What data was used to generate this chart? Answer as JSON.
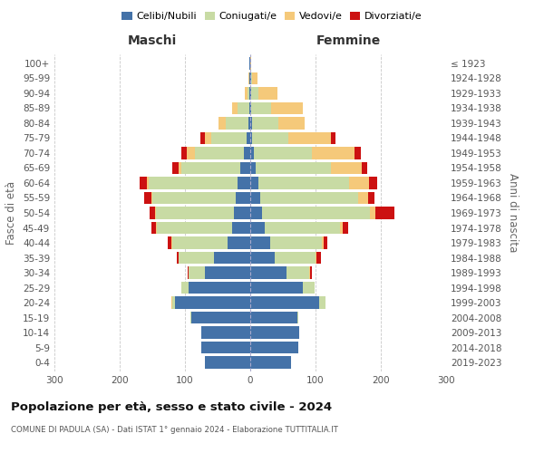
{
  "age_groups": [
    "0-4",
    "5-9",
    "10-14",
    "15-19",
    "20-24",
    "25-29",
    "30-34",
    "35-39",
    "40-44",
    "45-49",
    "50-54",
    "55-59",
    "60-64",
    "65-69",
    "70-74",
    "75-79",
    "80-84",
    "85-89",
    "90-94",
    "95-99",
    "100+"
  ],
  "birth_years": [
    "2019-2023",
    "2014-2018",
    "2009-2013",
    "2004-2008",
    "1999-2003",
    "1994-1998",
    "1989-1993",
    "1984-1988",
    "1979-1983",
    "1974-1978",
    "1969-1973",
    "1964-1968",
    "1959-1963",
    "1954-1958",
    "1949-1953",
    "1944-1948",
    "1939-1943",
    "1934-1938",
    "1929-1933",
    "1924-1928",
    "≤ 1923"
  ],
  "colors": {
    "celibi": "#4472a8",
    "coniugati": "#c8dba4",
    "vedovi": "#f5c97a",
    "divorziati": "#cc1111"
  },
  "maschi": {
    "celibi": [
      70,
      75,
      75,
      90,
      115,
      95,
      70,
      55,
      35,
      28,
      25,
      22,
      20,
      15,
      10,
      5,
      3,
      2,
      1,
      1,
      1
    ],
    "coniugati": [
      0,
      0,
      0,
      2,
      5,
      10,
      25,
      55,
      85,
      115,
      120,
      128,
      135,
      90,
      75,
      55,
      35,
      18,
      3,
      1,
      0
    ],
    "vedovi": [
      0,
      0,
      0,
      0,
      1,
      1,
      0,
      0,
      1,
      1,
      1,
      2,
      3,
      5,
      12,
      10,
      10,
      8,
      5,
      1,
      0
    ],
    "divorziati": [
      0,
      0,
      0,
      0,
      0,
      0,
      1,
      2,
      5,
      8,
      8,
      10,
      12,
      10,
      8,
      6,
      0,
      0,
      0,
      0,
      0
    ]
  },
  "femmine": {
    "celibi": [
      62,
      73,
      75,
      72,
      105,
      80,
      55,
      38,
      30,
      22,
      18,
      15,
      12,
      8,
      5,
      3,
      3,
      2,
      1,
      1,
      0
    ],
    "coniugati": [
      0,
      0,
      0,
      2,
      10,
      18,
      35,
      62,
      80,
      115,
      165,
      150,
      140,
      115,
      90,
      55,
      40,
      30,
      12,
      2,
      0
    ],
    "vedovi": [
      0,
      0,
      0,
      0,
      0,
      0,
      1,
      1,
      3,
      5,
      8,
      15,
      30,
      48,
      65,
      65,
      40,
      48,
      28,
      8,
      2
    ],
    "divorziati": [
      0,
      0,
      0,
      0,
      0,
      1,
      3,
      8,
      5,
      8,
      30,
      10,
      12,
      8,
      10,
      8,
      0,
      0,
      0,
      0,
      0
    ]
  },
  "xlim": 300,
  "title": "Popolazione per età, sesso e stato civile - 2024",
  "subtitle": "COMUNE DI PADULA (SA) - Dati ISTAT 1° gennaio 2024 - Elaborazione TUTTITALIA.IT",
  "ylabel_left": "Fasce di età",
  "ylabel_right": "Anni di nascita",
  "xlabel_left": "Maschi",
  "xlabel_right": "Femmine",
  "legend_labels": [
    "Celibi/Nubili",
    "Coniugati/e",
    "Vedovi/e",
    "Divorziati/e"
  ],
  "background_color": "#ffffff",
  "grid_color": "#c8c8c8"
}
